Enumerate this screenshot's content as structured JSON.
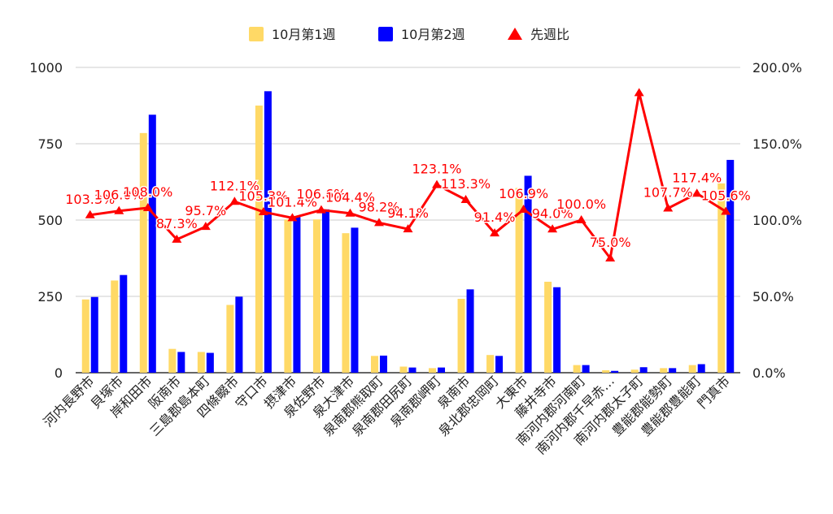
{
  "chart_data": {
    "type": "bar",
    "combo": "bar+line",
    "categories": [
      "河内長野市",
      "貝塚市",
      "岸和田市",
      "阪南市",
      "三島郡島本町",
      "四條畷市",
      "守口市",
      "摂津市",
      "泉佐野市",
      "泉大津市",
      "泉南郡熊取町",
      "泉南郡田尻町",
      "泉南郡岬町",
      "泉南市",
      "泉北郡忠岡町",
      "大東市",
      "藤井寺市",
      "南河内郡河南町",
      "南河内郡千早赤…",
      "南河内郡太子町",
      "豊能郡能勢町",
      "豊能郡豊能町",
      "門真市"
    ],
    "series": [
      {
        "name": "10月第1週",
        "type": "bar",
        "axis": "left",
        "color": "#ffd966",
        "values": [
          240,
          302,
          785,
          78,
          68,
          222,
          875,
          502,
          502,
          457,
          55,
          20,
          15,
          242,
          58,
          605,
          298,
          25,
          8,
          10,
          15,
          25,
          620
        ]
      },
      {
        "name": "10月第2週",
        "type": "bar",
        "axis": "left",
        "color": "#0000ff",
        "values": [
          248,
          320,
          845,
          68,
          65,
          249,
          922,
          510,
          535,
          475,
          56,
          17,
          17,
          273,
          55,
          645,
          280,
          25,
          6,
          18,
          15,
          28,
          697
        ]
      },
      {
        "name": "先週比",
        "type": "line",
        "axis": "right",
        "color": "#ff0000",
        "values": [
          103.3,
          106.0,
          108.0,
          87.3,
          95.7,
          112.1,
          105.3,
          101.4,
          106.6,
          104.4,
          98.2,
          94.1,
          123.1,
          113.3,
          91.4,
          106.9,
          94.0,
          100.0,
          75.0,
          183.3,
          107.7,
          117.4,
          105.6
        ],
        "labels": [
          "103.3%",
          "106.0%",
          "108.0%",
          "87.3%",
          "95.7%",
          "112.1%",
          "105.3%",
          "101.4%",
          "106.6%",
          "104.4%",
          "98.2%",
          "94.1%",
          "123.1%",
          "113.3%",
          "91.4%",
          "106.9%",
          "94.0%",
          "100.0%",
          "75.0%",
          "",
          "107.7%",
          "117.4%",
          "105.6%"
        ]
      }
    ],
    "y_left": {
      "min": 0,
      "max": 1000,
      "ticks": [
        "0",
        "250",
        "500",
        "750",
        "1000"
      ]
    },
    "y_right": {
      "min": 0,
      "max": 200,
      "ticks": [
        "0.0%",
        "50.0%",
        "100.0%",
        "150.0%",
        "200.0%"
      ]
    },
    "legend_position": "top",
    "grid": true,
    "title": "",
    "xlabel": "",
    "ylabel": ""
  }
}
